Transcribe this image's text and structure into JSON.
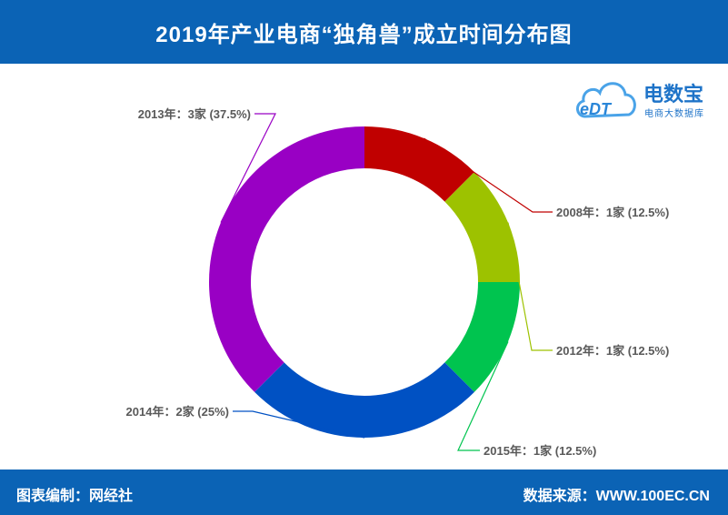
{
  "header": {
    "title": "2019年产业电商“独角兽”成立时间分布图"
  },
  "footer": {
    "left_text": "图表编制：网经社",
    "right_text": "数据来源：WWW.100EC.CN"
  },
  "logo": {
    "brand": "电数宝",
    "sub": "电商大数据库",
    "mark": "eDT"
  },
  "colors": {
    "header_bg": "#0b63b5",
    "2008年": "#c00000",
    "2012年": "#9dc200",
    "2015年": "#00c44f",
    "2014年": "#0051c3",
    "2013年": "#9900c4"
  },
  "chart_data": {
    "type": "pie",
    "variant": "donut",
    "title": "2019年产业电商“独角兽”成立时间分布图",
    "slices": [
      {
        "label": "2008年",
        "value": 1,
        "unit": "家",
        "percent": 12.5,
        "text": "2008年：1家 (12.5%)",
        "color": "#c00000"
      },
      {
        "label": "2012年",
        "value": 1,
        "unit": "家",
        "percent": 12.5,
        "text": "2012年：1家 (12.5%)",
        "color": "#9dc200"
      },
      {
        "label": "2015年",
        "value": 1,
        "unit": "家",
        "percent": 12.5,
        "text": "2015年：1家 (12.5%)",
        "color": "#00c44f"
      },
      {
        "label": "2014年",
        "value": 2,
        "unit": "家",
        "percent": 25,
        "text": "2014年：2家 (25%)",
        "color": "#0051c3"
      },
      {
        "label": "2013年",
        "value": 3,
        "unit": "家",
        "percent": 37.5,
        "text": "2013年：3家 (37.5%)",
        "color": "#9900c4"
      }
    ]
  }
}
